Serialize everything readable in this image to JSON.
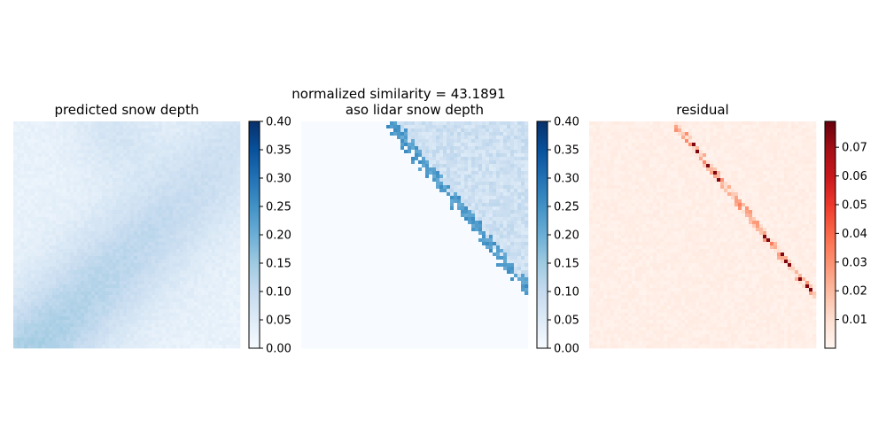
{
  "suptitle": "normalized similarity = 43.1891",
  "chart_data": [
    {
      "type": "heatmap",
      "title": "predicted snow depth",
      "colormap": "Blues",
      "colormap_colors": [
        "#f7fbff",
        "#deebf7",
        "#c6dbef",
        "#9ecae1",
        "#6baed6",
        "#4292c6",
        "#2171b5",
        "#08519c",
        "#08306b"
      ],
      "vmin": 0.0,
      "vmax": 0.4,
      "colorbar_ticks": [
        "0.00",
        "0.05",
        "0.10",
        "0.15",
        "0.20",
        "0.25",
        "0.30",
        "0.35",
        "0.40"
      ],
      "axes_visible": false,
      "grid": 64,
      "field": {
        "base": 0.03,
        "band_center": 1.08,
        "band_width": 0.22,
        "band_peak": 0.09,
        "noise": 0.02,
        "top_blob": 0.04
      }
    },
    {
      "type": "heatmap",
      "title": "aso lidar snow depth",
      "colormap": "Blues",
      "colormap_colors": [
        "#f7fbff",
        "#deebf7",
        "#c6dbef",
        "#9ecae1",
        "#6baed6",
        "#4292c6",
        "#2171b5",
        "#08519c",
        "#08306b"
      ],
      "vmin": 0.0,
      "vmax": 0.4,
      "colorbar_ticks": [
        "0.00",
        "0.05",
        "0.10",
        "0.15",
        "0.20",
        "0.25",
        "0.30",
        "0.35",
        "0.40"
      ],
      "axes_visible": false,
      "grid": 64,
      "field": {
        "edge_start": 0.37,
        "edge_end": 1.0,
        "edge_level": 0.22,
        "interior_level": 0.07,
        "noise": 0.06
      }
    },
    {
      "type": "heatmap",
      "title": "residual",
      "colormap": "Reds",
      "colormap_colors": [
        "#fff5f0",
        "#fee0d2",
        "#fcbba1",
        "#fc9272",
        "#fb6a4a",
        "#ef3b2c",
        "#cb181d",
        "#a50f15",
        "#67000d"
      ],
      "vmin": 0.0,
      "vmax": 0.079,
      "colorbar_ticks": [
        "0.01",
        "0.02",
        "0.03",
        "0.04",
        "0.05",
        "0.06",
        "0.07"
      ],
      "axes_visible": false,
      "grid": 64,
      "field": {
        "base": 0.003,
        "edge_level": 0.03,
        "spike_level": 0.075,
        "noise": 0.004
      }
    }
  ]
}
